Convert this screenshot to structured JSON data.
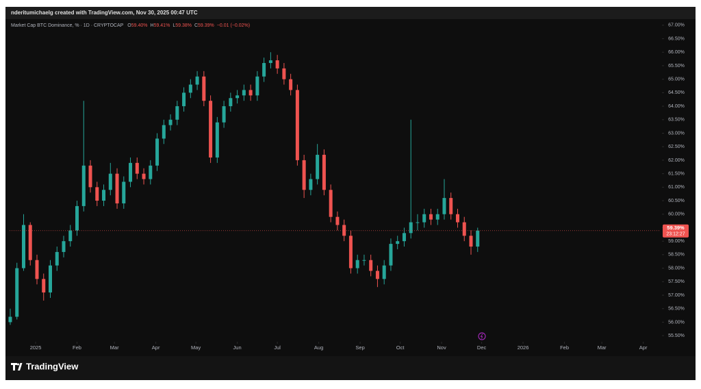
{
  "chart_data": {
    "type": "candlestick",
    "header": "nderitumichaelg created with TradingView.com, Nov 30, 2025 00:47 UTC",
    "legend": {
      "symbol": "Market Cap BTC Dominance, % · 1D · CRYPTOCAP",
      "items": [
        {
          "key": "O",
          "value": "59.40%"
        },
        {
          "key": "H",
          "value": "59.41%"
        },
        {
          "key": "L",
          "value": "59.38%"
        },
        {
          "key": "C",
          "value": "59.39%"
        }
      ],
      "change": "−0.01 (−0.02%)"
    },
    "brand": "TradingView",
    "up_color": "#26a69a",
    "down_color": "#ef5350",
    "x": [
      -19,
      -14,
      -9,
      -4,
      1,
      6,
      11,
      16,
      21,
      26,
      31,
      36,
      41,
      46,
      51,
      56,
      61,
      66,
      71,
      76,
      81,
      86,
      91,
      96,
      101,
      106,
      111,
      116,
      121,
      126,
      131,
      136,
      141,
      146,
      151,
      156,
      161,
      166,
      171,
      176,
      181,
      186,
      191,
      196,
      201,
      206,
      211,
      216,
      221,
      226,
      231,
      236,
      241,
      246,
      251,
      256,
      261,
      266,
      271,
      276,
      281,
      286,
      291,
      296,
      301,
      306,
      311,
      316,
      321,
      326,
      331
    ],
    "open": [
      56.0,
      56.2,
      58.0,
      59.6,
      58.3,
      57.6,
      57.1,
      58.1,
      58.6,
      59.0,
      59.4,
      60.3,
      61.8,
      61.0,
      60.5,
      60.9,
      61.5,
      60.4,
      61.2,
      61.9,
      61.5,
      61.3,
      61.8,
      62.8,
      63.3,
      63.5,
      64.0,
      64.5,
      64.8,
      65.1,
      64.2,
      62.1,
      63.4,
      64.0,
      64.3,
      64.4,
      64.6,
      64.4,
      65.1,
      65.6,
      65.7,
      65.4,
      65.0,
      64.6,
      62.0,
      60.9,
      61.3,
      62.2,
      60.9,
      59.9,
      59.6,
      59.2,
      58.0,
      58.3,
      58.3,
      57.9,
      57.6,
      58.1,
      58.9,
      59.0,
      59.3,
      59.7,
      59.7,
      60.0,
      59.8,
      60.0,
      60.6,
      60.0,
      59.7,
      59.2,
      58.8
    ],
    "high": [
      56.5,
      58.2,
      60.0,
      59.7,
      58.5,
      57.8,
      58.3,
      58.8,
      59.2,
      59.6,
      60.5,
      64.2,
      62.0,
      61.2,
      61.1,
      61.9,
      61.7,
      61.4,
      62.1,
      62.1,
      61.7,
      62.0,
      63.0,
      63.5,
      63.7,
      64.2,
      64.7,
      65.0,
      65.3,
      65.3,
      64.4,
      63.6,
      64.2,
      64.5,
      64.6,
      64.8,
      64.8,
      65.3,
      65.8,
      66.0,
      65.9,
      65.6,
      65.2,
      64.8,
      62.2,
      61.5,
      62.6,
      62.4,
      61.1,
      60.1,
      59.8,
      59.4,
      58.5,
      58.5,
      58.5,
      58.1,
      58.3,
      59.1,
      59.2,
      59.5,
      63.5,
      60.0,
      60.2,
      60.2,
      60.2,
      61.3,
      60.8,
      60.2,
      59.9,
      59.4,
      59.5
    ],
    "low": [
      55.9,
      56.1,
      57.9,
      58.1,
      57.4,
      56.8,
      56.9,
      57.9,
      58.4,
      58.8,
      59.2,
      60.1,
      60.8,
      60.3,
      60.3,
      60.7,
      60.2,
      60.2,
      61.0,
      61.3,
      61.1,
      61.1,
      61.6,
      62.6,
      63.1,
      63.3,
      63.8,
      64.3,
      64.6,
      64.0,
      61.9,
      61.9,
      63.2,
      63.8,
      64.1,
      64.2,
      64.2,
      64.2,
      64.9,
      65.4,
      65.2,
      64.8,
      64.4,
      61.8,
      60.6,
      60.7,
      61.1,
      60.7,
      59.7,
      59.4,
      59.0,
      57.8,
      57.8,
      58.1,
      57.7,
      57.3,
      57.4,
      57.9,
      58.7,
      58.8,
      59.1,
      59.4,
      59.5,
      59.6,
      59.6,
      59.8,
      59.8,
      59.5,
      59.0,
      58.5,
      58.6
    ],
    "close": [
      56.2,
      58.0,
      59.6,
      58.3,
      57.6,
      57.1,
      58.1,
      58.6,
      59.0,
      59.4,
      60.3,
      61.8,
      61.0,
      60.5,
      60.9,
      61.5,
      60.4,
      61.2,
      61.9,
      61.5,
      61.3,
      61.8,
      62.8,
      63.3,
      63.5,
      64.0,
      64.5,
      64.8,
      65.1,
      64.2,
      62.1,
      63.4,
      64.0,
      64.3,
      64.4,
      64.6,
      64.4,
      65.1,
      65.6,
      65.7,
      65.4,
      65.0,
      64.6,
      62.0,
      60.9,
      61.3,
      62.2,
      60.9,
      59.9,
      59.6,
      59.2,
      58.0,
      58.3,
      58.3,
      57.9,
      57.6,
      58.1,
      58.9,
      59.0,
      59.3,
      59.7,
      59.7,
      60.0,
      59.8,
      60.0,
      60.6,
      60.0,
      59.7,
      59.2,
      58.8,
      59.39
    ],
    "xlim": [
      -19.5,
      468
    ],
    "xticks": [
      {
        "value": 0,
        "label": "2025"
      },
      {
        "value": 31,
        "label": "Feb"
      },
      {
        "value": 59,
        "label": "Mar"
      },
      {
        "value": 90,
        "label": "Apr"
      },
      {
        "value": 120,
        "label": "May"
      },
      {
        "value": 151,
        "label": "Jun"
      },
      {
        "value": 181,
        "label": "Jul"
      },
      {
        "value": 212,
        "label": "Aug"
      },
      {
        "value": 243,
        "label": "Sep"
      },
      {
        "value": 273,
        "label": "Oct"
      },
      {
        "value": 304,
        "label": "Nov"
      },
      {
        "value": 334,
        "label": "Dec"
      },
      {
        "value": 365,
        "label": "2026"
      },
      {
        "value": 396,
        "label": "Feb"
      },
      {
        "value": 424,
        "label": "Mar"
      },
      {
        "value": 455,
        "label": "Apr"
      }
    ],
    "ylim": [
      55.3,
      67.3
    ],
    "yticks": [
      {
        "value": 55.5,
        "label": "55.50%"
      },
      {
        "value": 56,
        "label": "56.00%"
      },
      {
        "value": 56.5,
        "label": "56.50%"
      },
      {
        "value": 57,
        "label": "57.00%"
      },
      {
        "value": 57.5,
        "label": "57.50%"
      },
      {
        "value": 58,
        "label": "58.00%"
      },
      {
        "value": 58.5,
        "label": "58.50%"
      },
      {
        "value": 59,
        "label": "59.00%"
      },
      {
        "value": 59.5,
        "label": "59.50%"
      },
      {
        "value": 60,
        "label": "60.00%"
      },
      {
        "value": 60.5,
        "label": "60.50%"
      },
      {
        "value": 61,
        "label": "61.00%"
      },
      {
        "value": 61.5,
        "label": "61.50%"
      },
      {
        "value": 62,
        "label": "62.00%"
      },
      {
        "value": 62.5,
        "label": "62.50%"
      },
      {
        "value": 63,
        "label": "63.00%"
      },
      {
        "value": 63.5,
        "label": "63.50%"
      },
      {
        "value": 64,
        "label": "64.00%"
      },
      {
        "value": 64.5,
        "label": "64.50%"
      },
      {
        "value": 65,
        "label": "65.00%"
      },
      {
        "value": 65.5,
        "label": "65.50%"
      },
      {
        "value": 66,
        "label": "66.00%"
      },
      {
        "value": 66.5,
        "label": "66.50%"
      },
      {
        "value": 67,
        "label": "67.00%"
      }
    ],
    "grid": false,
    "last_price": {
      "value": 59.39,
      "label": "59.39%",
      "countdown": "23:12:27"
    }
  }
}
